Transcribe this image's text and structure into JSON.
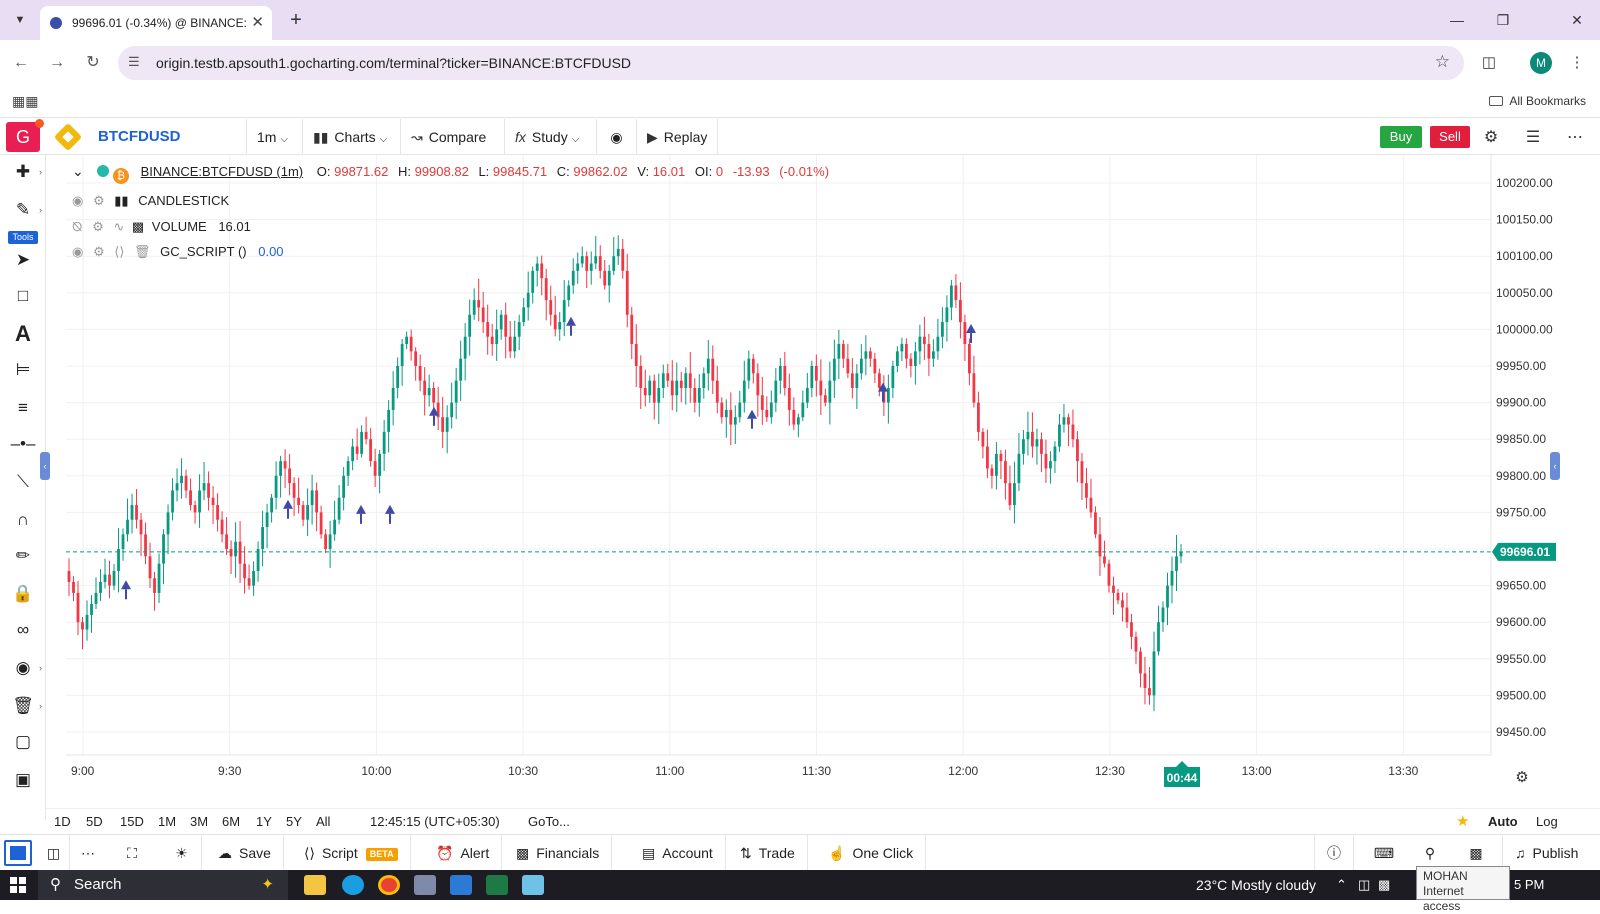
{
  "browser": {
    "tab_title": "99696.01 (-0.34%) @ BINANCE:",
    "url": "origin.testb.apsouth1.gocharting.com/terminal?ticker=BINANCE:BTCFDUSD",
    "profile_initial": "M",
    "bookmarks_label": "All Bookmarks"
  },
  "toolbar": {
    "logo_letter": "G",
    "symbol": "BTCFDUSD",
    "interval": "1m",
    "charts": "Charts",
    "compare": "Compare",
    "study": "Study",
    "replay": "Replay",
    "buy": "Buy",
    "sell": "Sell"
  },
  "left_tools": {
    "tools_badge": "Tools"
  },
  "legend": {
    "title": "BINANCE:BTCFDUSD (1m)",
    "o_label": "O:",
    "o": "99871.62",
    "h_label": "H:",
    "h": "99908.82",
    "l_label": "L:",
    "l": "99845.71",
    "c_label": "C:",
    "c": "99862.02",
    "v_label": "V:",
    "v": "16.01",
    "oi_label": "OI:",
    "oi": "0",
    "change": "-13.93",
    "change_pct": "(-0.01%)",
    "studies": [
      {
        "name": "CANDLESTICK",
        "value": ""
      },
      {
        "name": "VOLUME",
        "value": "16.01"
      },
      {
        "name": "GC_SCRIPT ()",
        "value": "0.00"
      }
    ]
  },
  "chart_data": {
    "type": "candlestick",
    "y_ticks": [
      "100200.00",
      "100150.00",
      "100100.00",
      "100050.00",
      "100000.00",
      "99950.00",
      "99900.00",
      "99850.00",
      "99800.00",
      "99750.00",
      "99700.00",
      "99650.00",
      "99600.00",
      "99550.00",
      "99500.00",
      "99450.00"
    ],
    "x_ticks": [
      "9:00",
      "9:30",
      "10:00",
      "10:30",
      "11:00",
      "11:30",
      "12:00",
      "12:30",
      "13:00",
      "13:30"
    ],
    "last_price": "99696.01",
    "current_time_label": "00:44",
    "closes": [
      99655,
      99640,
      99600,
      99590,
      99610,
      99625,
      99640,
      99655,
      99665,
      99650,
      99670,
      99700,
      99720,
      99740,
      99760,
      99740,
      99720,
      99690,
      99660,
      99640,
      99680,
      99720,
      99750,
      99780,
      99790,
      99800,
      99780,
      99760,
      99750,
      99780,
      99790,
      99770,
      99760,
      99740,
      99720,
      99700,
      99690,
      99710,
      99680,
      99660,
      99650,
      99670,
      99700,
      99730,
      99750,
      99770,
      99800,
      99820,
      99810,
      99790,
      99770,
      99760,
      99740,
      99760,
      99780,
      99750,
      99720,
      99700,
      99720,
      99740,
      99770,
      99800,
      99820,
      99840,
      99830,
      99860,
      99850,
      99820,
      99800,
      99830,
      99860,
      99890,
      99920,
      99950,
      99980,
      99990,
      99970,
      99950,
      99930,
      99910,
      99920,
      99900,
      99880,
      99860,
      99880,
      99900,
      99930,
      99960,
      99990,
      100020,
      100040,
      100030,
      100010,
      99990,
      99980,
      100000,
      100020,
      99990,
      99970,
      99990,
      100010,
      100030,
      100050,
      100080,
      100090,
      100070,
      100040,
      100020,
      100000,
      100010,
      100040,
      100060,
      100080,
      100090,
      100100,
      100080,
      100090,
      100100,
      100080,
      100060,
      100080,
      100100,
      100110,
      100080,
      100020,
      99980,
      99950,
      99920,
      99910,
      99930,
      99900,
      99920,
      99940,
      99930,
      99910,
      99930,
      99920,
      99940,
      99920,
      99900,
      99920,
      99940,
      99960,
      99930,
      99900,
      99880,
      99890,
      99870,
      99880,
      99900,
      99930,
      99960,
      99940,
      99910,
      99890,
      99880,
      99900,
      99930,
      99950,
      99920,
      99890,
      99870,
      99880,
      99900,
      99920,
      99950,
      99930,
      99910,
      99900,
      99930,
      99960,
      99980,
      99960,
      99940,
      99920,
      99940,
      99960,
      99970,
      99960,
      99940,
      99920,
      99900,
      99920,
      99950,
      99970,
      99980,
      99960,
      99950,
      99970,
      99990,
      99980,
      99960,
      99970,
      99990,
      100010,
      100030,
      100060,
      100040,
      100010,
      99980,
      99940,
      99900,
      99860,
      99840,
      99810,
      99800,
      99830,
      99820,
      99790,
      99760,
      99790,
      99830,
      99850,
      99860,
      99840,
      99850,
      99830,
      99810,
      99820,
      99840,
      99870,
      99880,
      99870,
      99850,
      99820,
      99790,
      99770,
      99750,
      99720,
      99690,
      99680,
      99650,
      99640,
      99630,
      99620,
      99600,
      99580,
      99560,
      99530,
      99510,
      99500,
      99560,
      99600,
      99620,
      99650,
      99670,
      99690,
      99696
    ]
  },
  "timebar": {
    "ranges": [
      "1D",
      "5D",
      "15D",
      "1M",
      "3M",
      "6M",
      "1Y",
      "5Y",
      "All"
    ],
    "clock": "12:45:15 (UTC+05:30)",
    "goto": "GoTo...",
    "auto": "Auto",
    "log": "Log"
  },
  "bottom": {
    "save": "Save",
    "script": "Script",
    "beta": "BETA",
    "alert": "Alert",
    "financials": "Financials",
    "account": "Account",
    "trade": "Trade",
    "one_click": "One Click",
    "publish": "Publish"
  },
  "taskbar": {
    "search": "Search",
    "weather": "23°C  Mostly cloudy",
    "clock": "5 PM",
    "tooltip_line1": "MOHAN",
    "tooltip_line2": "Internet access"
  }
}
